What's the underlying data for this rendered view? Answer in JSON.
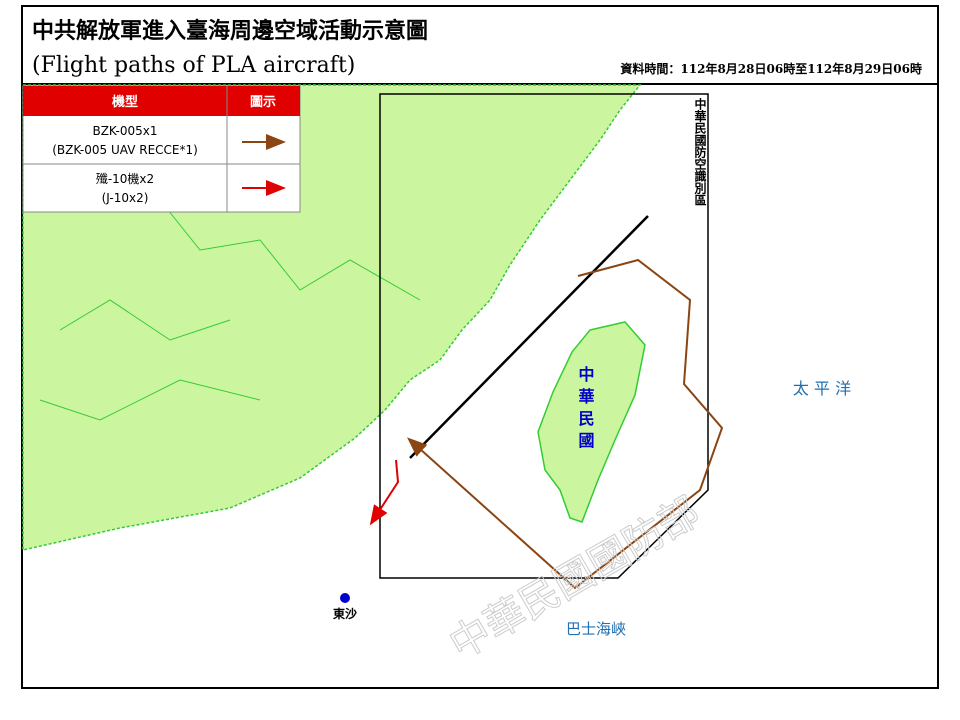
{
  "header": {
    "title": "中共解放軍進入臺海周邊空域活動示意圖",
    "subtitle": "(Flight paths of PLA aircraft)",
    "data_time": "資料時間：112年8月28日06時至112年8月29日06時"
  },
  "legend": {
    "headers": [
      "機型",
      "圖示"
    ],
    "rows": [
      {
        "line1": "BZK-005x1",
        "line2": "(BZK-005 UAV RECCE*1)"
      },
      {
        "line1": "殲-10機x2",
        "line2": "(J-10x2)"
      }
    ]
  },
  "map": {
    "adiz_label": "中華民國防空識別區",
    "taiwan_label": "中華民國",
    "pacific_label": "太 平 洋",
    "dongsha_label": "東沙",
    "bashi_label": "巴士海峽",
    "watermark": "中華民國國防部"
  }
}
